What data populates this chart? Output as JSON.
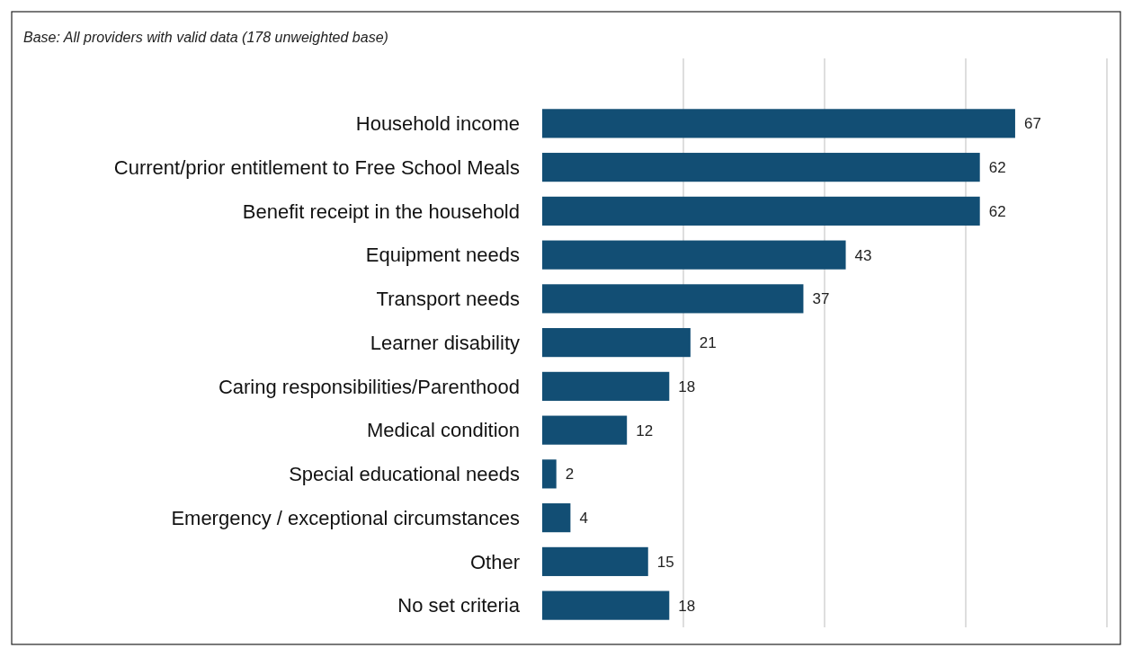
{
  "chart_data": {
    "type": "bar",
    "orientation": "horizontal",
    "subtitle": "Base: All providers with valid data (178 unweighted base)",
    "categories": [
      "Household income",
      "Current/prior entitlement to Free School Meals",
      "Benefit receipt in the household",
      "Equipment needs",
      "Transport needs",
      "Learner disability",
      "Caring responsibilities/Parenthood",
      "Medical condition",
      "Special educational needs",
      "Emergency / exceptional circumstances",
      "Other",
      "No set criteria"
    ],
    "values": [
      67,
      62,
      62,
      43,
      37,
      21,
      18,
      12,
      2,
      4,
      15,
      18
    ],
    "color": "#124e74",
    "xlim": [
      0,
      80
    ],
    "xticks": [
      {
        "value": 20,
        "label": null
      },
      {
        "value": 40,
        "label": null
      },
      {
        "value": 60,
        "label": null
      },
      {
        "value": 80,
        "label": null
      }
    ],
    "grid": "x",
    "tick_labels": "y",
    "data_labels": true
  }
}
